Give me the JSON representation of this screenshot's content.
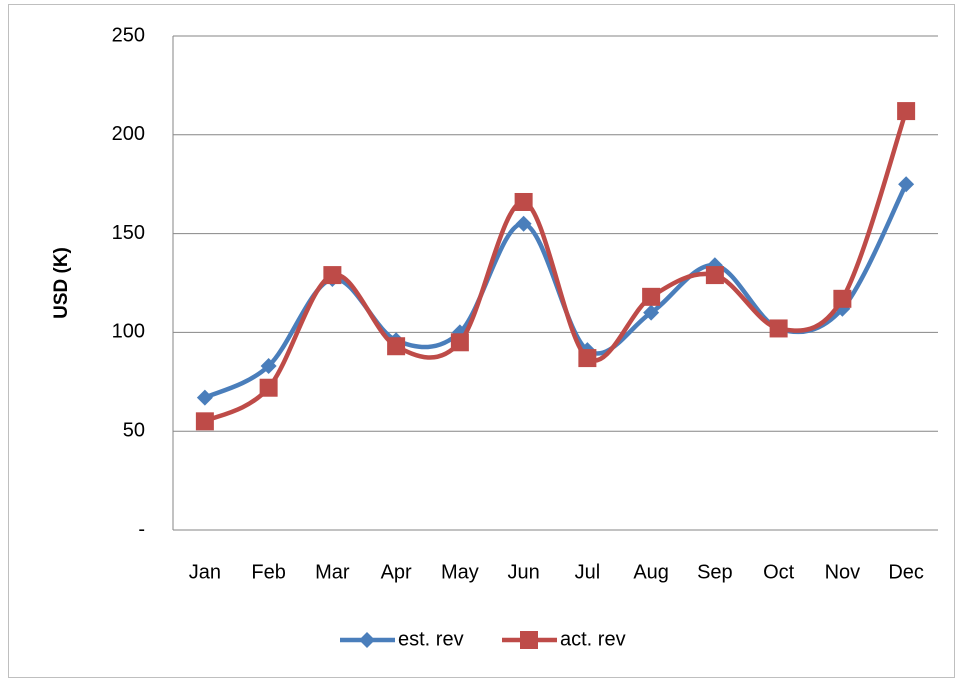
{
  "chart_data": {
    "type": "line",
    "ylabel": "USD (K)",
    "categories": [
      "Jan",
      "Feb",
      "Mar",
      "Apr",
      "May",
      "Jun",
      "Jul",
      "Aug",
      "Sep",
      "Oct",
      "Nov",
      "Dec"
    ],
    "series": [
      {
        "name": "est. rev",
        "color": "#4a7ebb",
        "marker": "diamond",
        "values": [
          67,
          83,
          127,
          96,
          100,
          155,
          91,
          110,
          134,
          102,
          112,
          175
        ]
      },
      {
        "name": "act. rev",
        "color": "#be4b48",
        "marker": "square",
        "values": [
          55,
          72,
          129,
          93,
          95,
          166,
          87,
          118,
          129,
          102,
          117,
          212
        ]
      }
    ],
    "ylim": [
      0,
      250
    ],
    "yticks": [
      {
        "value": 0,
        "label": "-"
      },
      50,
      100,
      150,
      200,
      250
    ],
    "grid": true,
    "smooth": true,
    "legend": "bottom"
  }
}
